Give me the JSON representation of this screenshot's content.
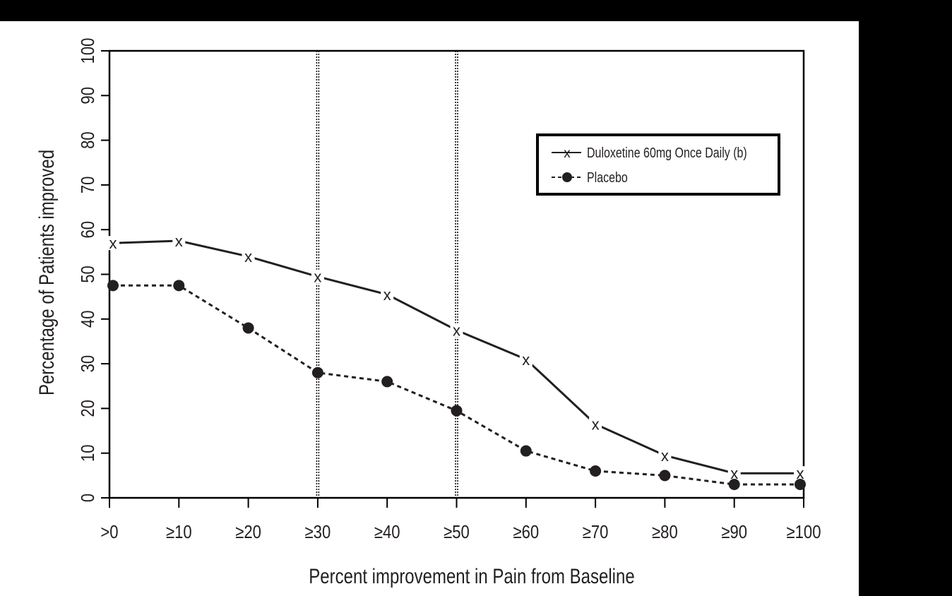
{
  "chart_data": {
    "type": "line",
    "xlabel": "Percent improvement in Pain from Baseline",
    "ylabel": "Percentage of Patients improved",
    "categories": [
      ">0",
      "≥10",
      "≥20",
      "≥30",
      "≥40",
      "≥50",
      "≥60",
      "≥70",
      "≥80",
      "≥90",
      "≥100"
    ],
    "ylim": [
      0,
      100
    ],
    "yticks": [
      "0",
      "10",
      "20",
      "30",
      "40",
      "50",
      "60",
      "70",
      "80",
      "90",
      "100"
    ],
    "reference_lines_at": [
      "≥30",
      "≥50"
    ],
    "grid": false,
    "legend_position": "top-right",
    "series": [
      {
        "name": "Duloxetine 60mg Once Daily (b)",
        "marker": "x",
        "line": "solid",
        "values": [
          57,
          57.5,
          54,
          49.5,
          45.5,
          37.5,
          31,
          16.5,
          9.5,
          5.5,
          5.5
        ]
      },
      {
        "name": "Placebo",
        "marker": "circle",
        "line": "dashed",
        "values": [
          47.5,
          47.5,
          38,
          28,
          26,
          19.5,
          10.5,
          6,
          5,
          3,
          3
        ]
      }
    ],
    "colors": {
      "ink": "#231f20",
      "background": "#ffffff",
      "frame": "#000000"
    }
  }
}
